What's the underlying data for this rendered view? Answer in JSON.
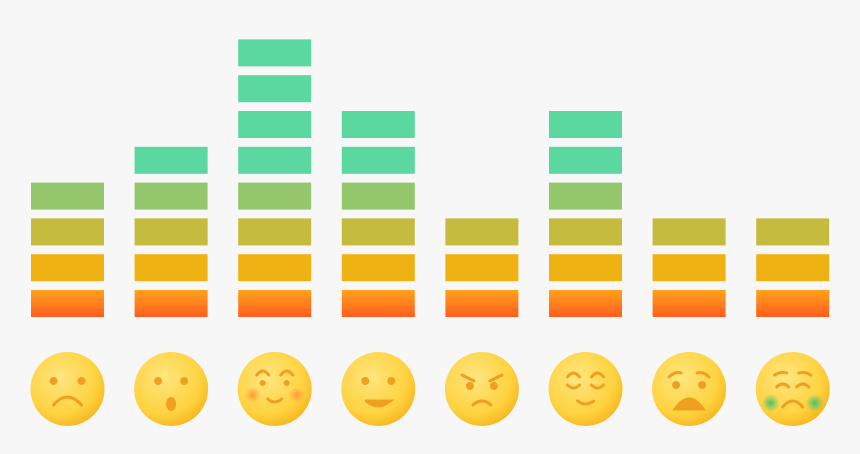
{
  "chart_data": {
    "type": "bar",
    "categories": [
      null,
      null,
      null,
      null,
      null,
      null,
      null,
      null
    ],
    "values": [
      4,
      5,
      8,
      6,
      3,
      6,
      3,
      3
    ],
    "level_colors": [
      "#ff7a1a",
      "#f0b112",
      "#c4bb3f",
      "#94c76b",
      "#5ad8a0"
    ]
  }
}
